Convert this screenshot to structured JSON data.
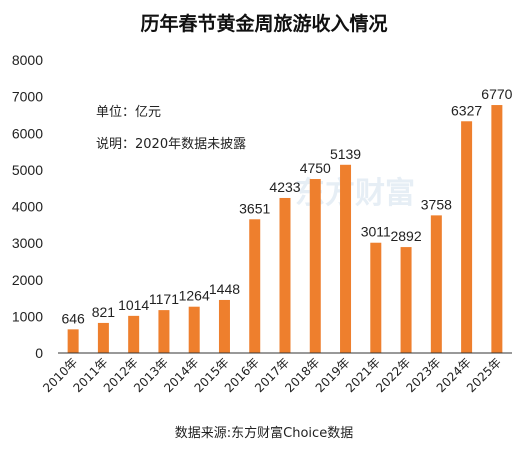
{
  "colors": {
    "bar": "#ee7f2d",
    "axis": "#333333",
    "text": "#222222",
    "watermark": "#e6eef5"
  },
  "watermark": "东方财富",
  "notes": {
    "unit": "单位：亿元",
    "explain": "说明：2020年数据未披露"
  },
  "source": "数据来源:东方财富Choice数据",
  "chart_data": {
    "type": "bar",
    "title": "历年春节黄金周旅游收入情况",
    "xlabel": "",
    "ylabel": "",
    "ylim": [
      0,
      8000
    ],
    "yticks": [
      0,
      1000,
      2000,
      3000,
      4000,
      5000,
      6000,
      7000,
      8000
    ],
    "grid": false,
    "categories": [
      "2010年",
      "2011年",
      "2012年",
      "2013年",
      "2014年",
      "2015年",
      "2016年",
      "2017年",
      "2018年",
      "2019年",
      "2021年",
      "2022年",
      "2023年",
      "2024年",
      "2025年"
    ],
    "values": [
      646,
      821,
      1014,
      1171,
      1264,
      1448,
      3651,
      4233,
      4750,
      5139,
      3011,
      2892,
      3758,
      6327,
      6770
    ]
  }
}
